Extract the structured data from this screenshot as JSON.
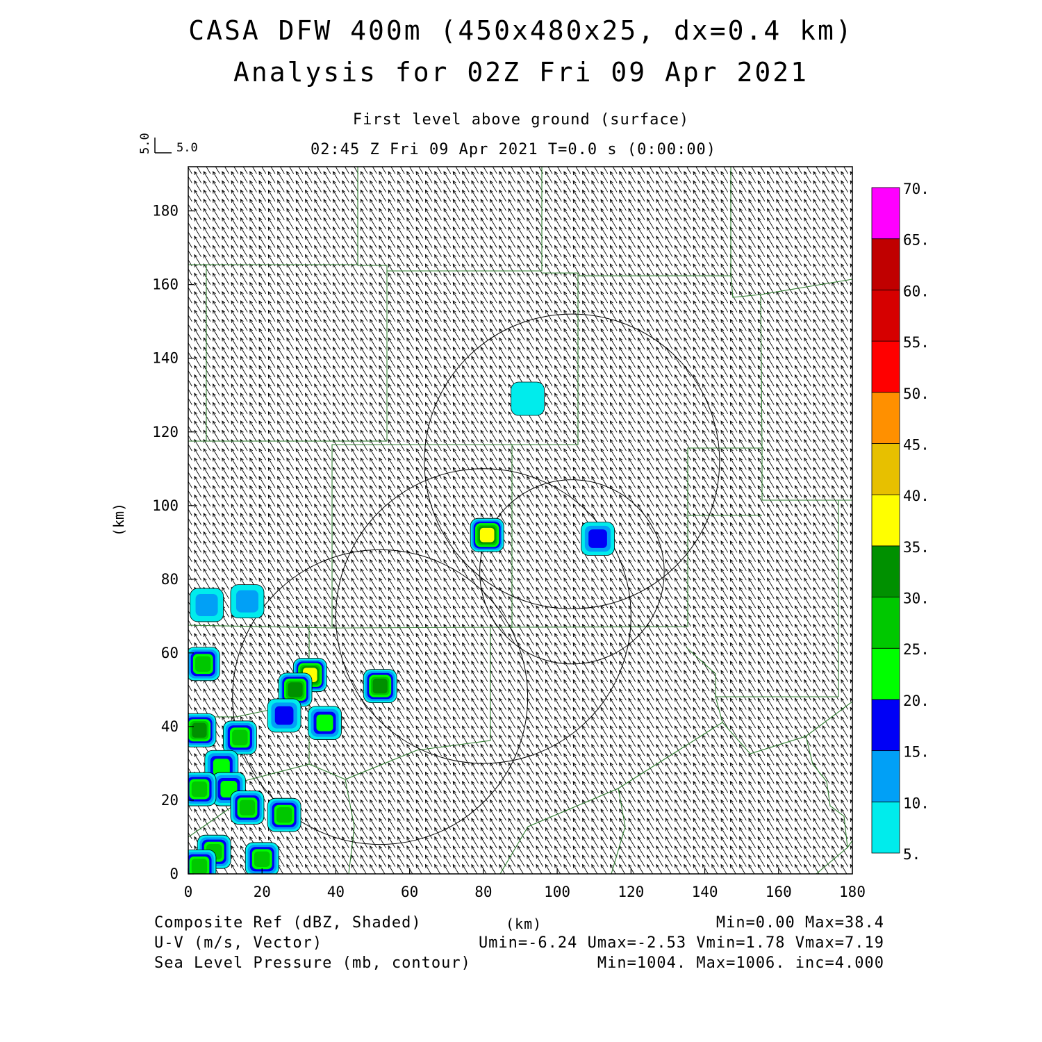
{
  "header": {
    "title": "CASA DFW 400m (450x480x25, dx=0.4 km)",
    "subtitle": "Analysis for 02Z Fri 09 Apr 2021",
    "level": "First level above ground (surface)",
    "time": "02:45 Z Fri 09 Apr 2021   T=0.0 s (0:00:00)"
  },
  "vector_reference": {
    "u": "5.0",
    "v": "5.0"
  },
  "chart_data": {
    "type": "map",
    "x_axis": {
      "label": "(km)",
      "range": [
        0,
        180
      ],
      "ticks": [
        "0",
        "20",
        "40",
        "60",
        "80",
        "100",
        "120",
        "140",
        "160",
        "180"
      ]
    },
    "y_axis": {
      "label": "(km)",
      "range": [
        0,
        192
      ],
      "ticks": [
        "0",
        "20",
        "40",
        "60",
        "80",
        "100",
        "120",
        "140",
        "160",
        "180"
      ]
    },
    "wind": {
      "direction": "from southeast",
      "u_range": [
        -6.24,
        -2.53
      ],
      "v_range": [
        1.78,
        7.19
      ],
      "units": "m/s"
    },
    "radar_range_rings": [
      {
        "center": [
          52,
          48
        ],
        "radius_km": 40
      },
      {
        "center": [
          80,
          70
        ],
        "radius_km": 40
      },
      {
        "center": [
          104,
          112
        ],
        "radius_km": 40
      },
      {
        "center": [
          104,
          82
        ],
        "radius_km": 25
      }
    ],
    "reflectivity_cells": [
      {
        "x": 5,
        "y": 73,
        "dbz": 12
      },
      {
        "x": 16,
        "y": 74,
        "dbz": 12
      },
      {
        "x": 4,
        "y": 57,
        "dbz": 27
      },
      {
        "x": 33,
        "y": 54,
        "dbz": 37
      },
      {
        "x": 29,
        "y": 50,
        "dbz": 36
      },
      {
        "x": 52,
        "y": 51,
        "dbz": 32
      },
      {
        "x": 26,
        "y": 43,
        "dbz": 20
      },
      {
        "x": 37,
        "y": 41,
        "dbz": 26
      },
      {
        "x": 3,
        "y": 39,
        "dbz": 36
      },
      {
        "x": 14,
        "y": 37,
        "dbz": 27
      },
      {
        "x": 9,
        "y": 29,
        "dbz": 24
      },
      {
        "x": 11,
        "y": 23,
        "dbz": 22
      },
      {
        "x": 16,
        "y": 18,
        "dbz": 29
      },
      {
        "x": 26,
        "y": 16,
        "dbz": 27
      },
      {
        "x": 3,
        "y": 23,
        "dbz": 29
      },
      {
        "x": 7,
        "y": 6,
        "dbz": 31
      },
      {
        "x": 20,
        "y": 4,
        "dbz": 31
      },
      {
        "x": 3,
        "y": 2,
        "dbz": 28
      },
      {
        "x": 81,
        "y": 92,
        "dbz": 37
      },
      {
        "x": 111,
        "y": 91,
        "dbz": 20
      },
      {
        "x": 92,
        "y": 129,
        "dbz": 7
      }
    ]
  },
  "colorbar": {
    "labels": [
      "5.",
      "10.",
      "15.",
      "20.",
      "25.",
      "30.",
      "35.",
      "40.",
      "45.",
      "50.",
      "55.",
      "60.",
      "65.",
      "70."
    ],
    "colors": [
      "#00ecec",
      "#01a0f6",
      "#0000f6",
      "#00ff00",
      "#00c800",
      "#009000",
      "#ffff00",
      "#e7c000",
      "#ff9000",
      "#ff0000",
      "#d60000",
      "#c00000",
      "#ff00ff"
    ]
  },
  "footer": {
    "left1": "Composite Ref (dBZ, Shaded)",
    "left2": "U-V (m/s, Vector)",
    "left3": "Sea Level Pressure (mb, contour)",
    "x_unit": "(km)",
    "right1": "Min=0.00 Max=38.4",
    "right2": "Umin=-6.24 Umax=-2.53 Vmin=1.78 Vmax=7.19",
    "right3": "Min=1004. Max=1006. inc=4.000"
  }
}
